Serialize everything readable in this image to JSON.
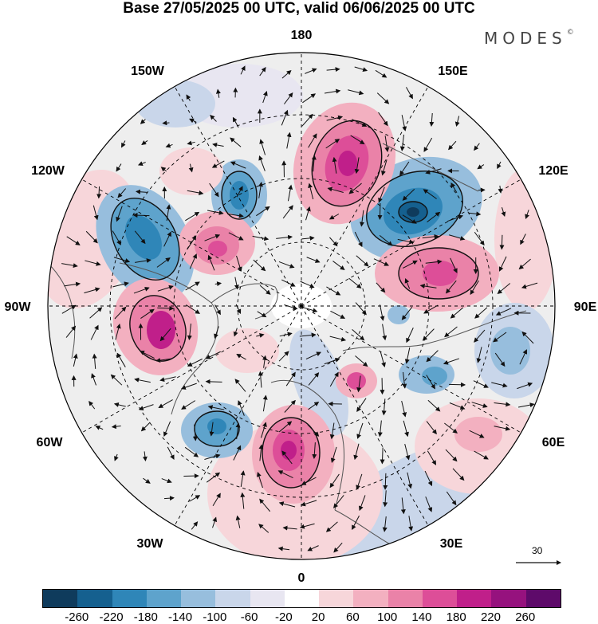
{
  "title": "Base 27/05/2025 00 UTC, valid 06/06/2025 00 UTC",
  "logo": "MODES",
  "logo_mark": "©",
  "longitude_labels": {
    "n180": "180",
    "w150": "150W",
    "e150": "150E",
    "w120": "120W",
    "e120": "120E",
    "w90": "90W",
    "e90": "90E",
    "w60": "60W",
    "e60": "60E",
    "w30": "30W",
    "e30": "30E",
    "s0": "0"
  },
  "reference_vector_label": "30",
  "colorbar": {
    "ticks": [
      "-260",
      "-220",
      "-180",
      "-140",
      "-100",
      "-60",
      "-20",
      "20",
      "60",
      "100",
      "140",
      "180",
      "220",
      "260"
    ],
    "colors": [
      "#0f3b5c",
      "#15608f",
      "#2f86b8",
      "#5ea3cc",
      "#97bedd",
      "#c9d6ea",
      "#e8e6f1",
      "#ffffff",
      "#f7d6da",
      "#f3b0c0",
      "#ea82a8",
      "#dd4e98",
      "#c01f8a",
      "#96127e",
      "#5e0a6a"
    ]
  },
  "map_colors": {
    "neutral": "#eeeeee",
    "land_outline": "#555555",
    "contour": "#111111",
    "grid": "#000000",
    "arrow": "#111111"
  }
}
